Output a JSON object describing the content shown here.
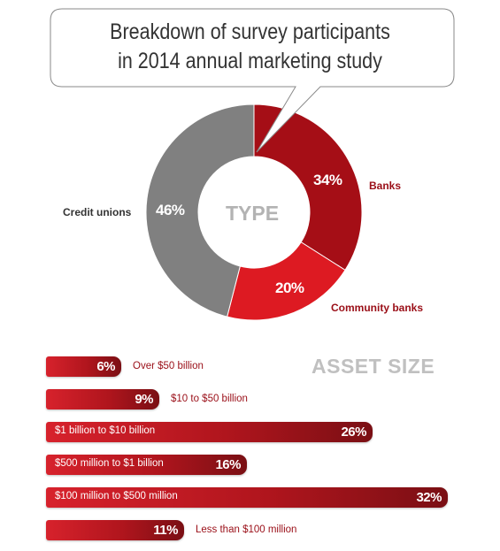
{
  "callout": {
    "line1": "Breakdown of survey participants",
    "line2": "in 2014 annual marketing study"
  },
  "donut": {
    "center_label": "TYPE"
  },
  "asset": {
    "title": "ASSET SIZE"
  },
  "colors": {
    "banks": "#a50e16",
    "community_banks": "#dd1a22",
    "credit_unions": "#808080",
    "other": "#b5121b",
    "label_red": "#9a0e17",
    "label_gray": "#333333"
  },
  "chart_data": [
    {
      "type": "pie",
      "subtitle": "TYPE",
      "categories": [
        "Banks",
        "Community banks",
        "Credit unions"
      ],
      "values": [
        34,
        20,
        46
      ],
      "value_labels": [
        "34%",
        "20%",
        "46%"
      ],
      "unit": "%"
    },
    {
      "type": "bar",
      "subtitle": "ASSET SIZE",
      "orientation": "horizontal",
      "categories": [
        "Over $50 billion",
        "$10 to $50 billion",
        "$1 billion to $10 billion",
        "$500 million to $1 billion",
        "$100 million to $500 million",
        "Less than $100 million"
      ],
      "values": [
        6,
        9,
        26,
        16,
        32,
        11
      ],
      "value_labels": [
        "6%",
        "9%",
        "26%",
        "16%",
        "32%",
        "11%"
      ],
      "unit": "%"
    }
  ]
}
